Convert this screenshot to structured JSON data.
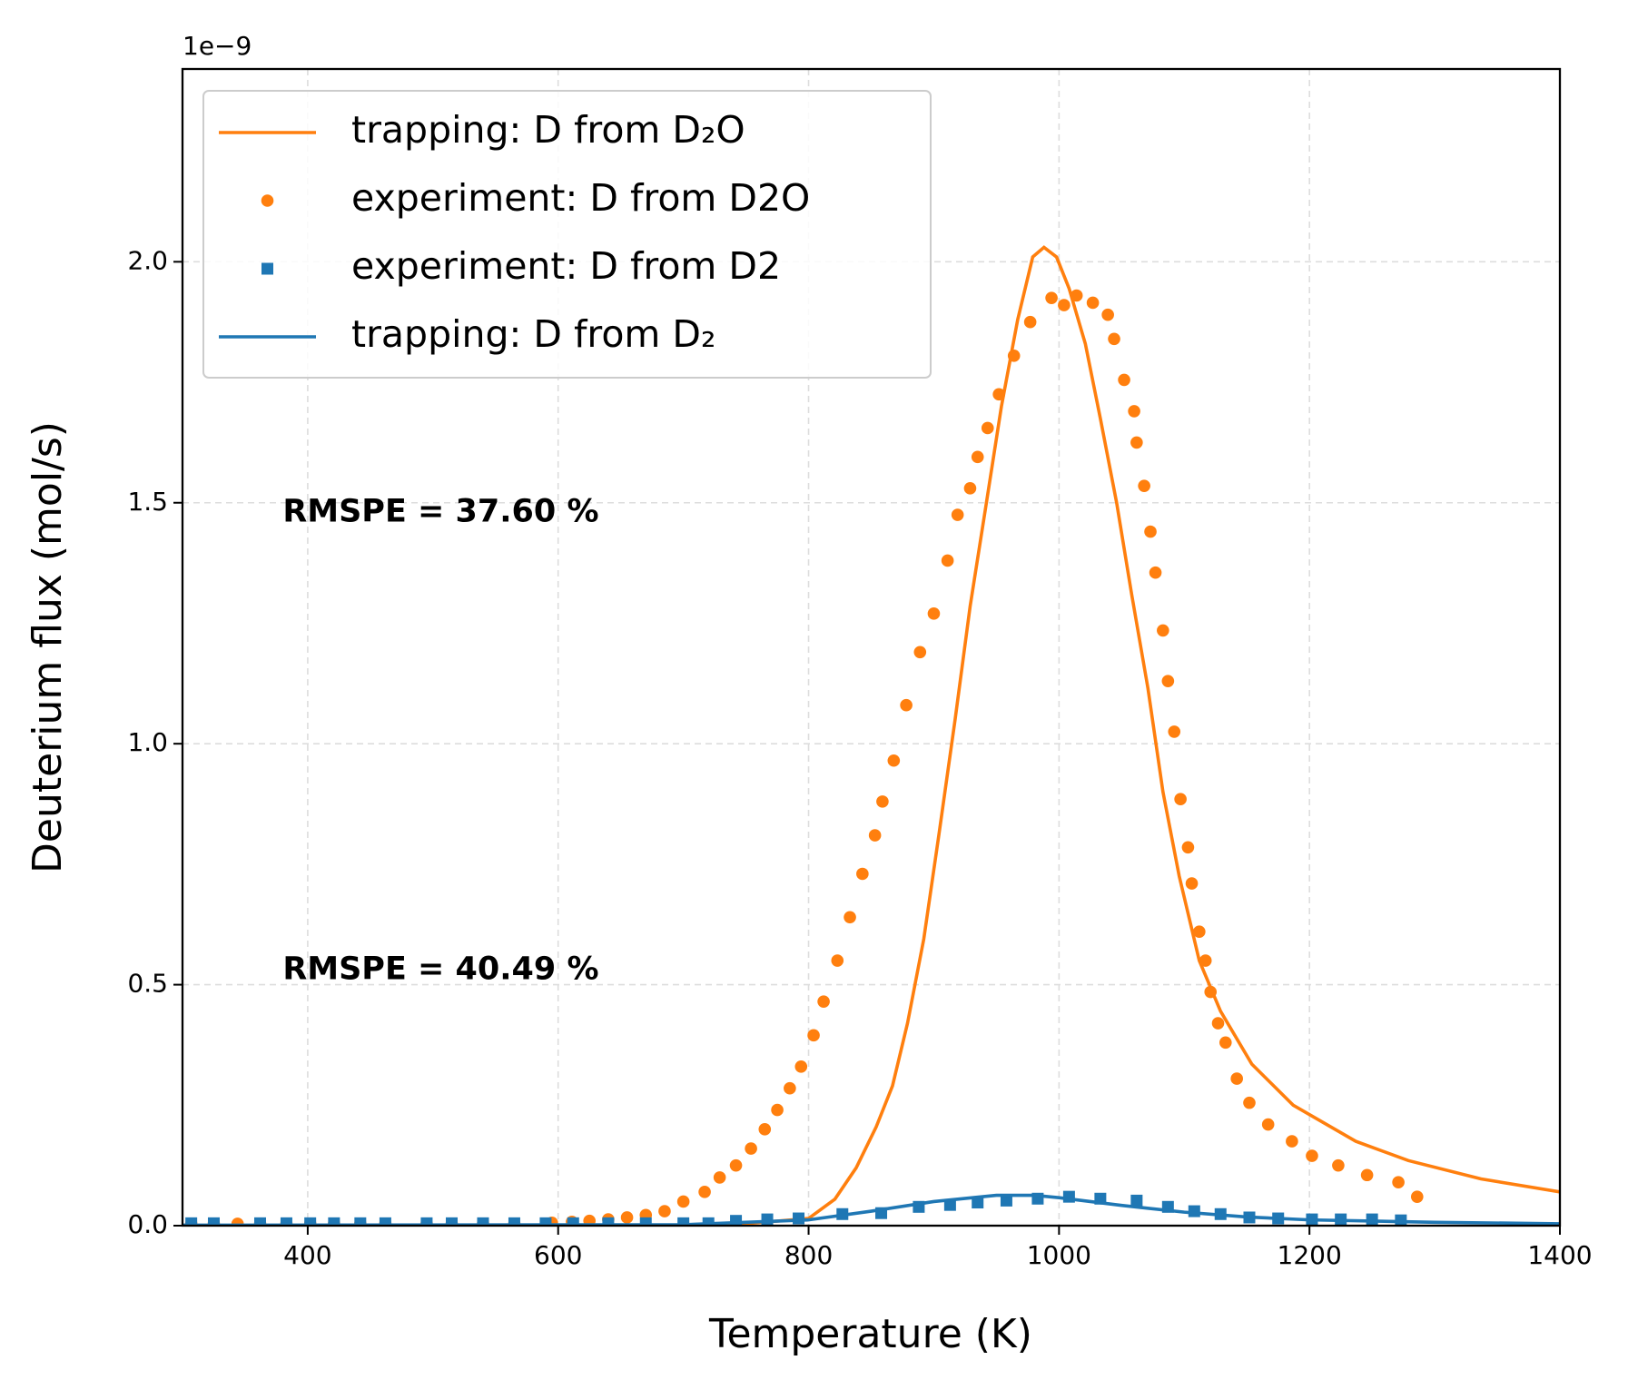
{
  "chart_data": {
    "type": "line",
    "xlabel": "Temperature (K)",
    "ylabel": "Deuterium flux (mol/s)",
    "y_offset_label": "1e−9",
    "xlim": [
      300,
      1400
    ],
    "ylim": [
      0,
      2.4
    ],
    "xticks": [
      400,
      600,
      800,
      1000,
      1200,
      1400
    ],
    "yticks": [
      {
        "value": 0,
        "label": "0.0"
      },
      {
        "value": 0.5,
        "label": "0.5"
      },
      {
        "value": 1,
        "label": "1.0"
      },
      {
        "value": 1.5,
        "label": "1.5"
      },
      {
        "value": 2,
        "label": "2.0"
      }
    ],
    "grid": true,
    "legend": "upper left",
    "annotations": [
      {
        "text": "RMSPE = 37.60 %",
        "x": 380,
        "y": 1.48,
        "color": "#ff7f0e"
      },
      {
        "text": "RMSPE = 40.49 %",
        "x": 380,
        "y": 0.53,
        "color": "#1f77b4"
      }
    ],
    "series": [
      {
        "name": "trapping: D from D₂O",
        "color": "#ff7f0e",
        "style": "line",
        "x": [
          300,
          600,
          700,
          750,
          800,
          821,
          838,
          854,
          867,
          879,
          892,
          904,
          917,
          929,
          942,
          954,
          967,
          979,
          988,
          998,
          1008,
          1021,
          1033,
          1046,
          1058,
          1071,
          1083,
          1096,
          1112,
          1129,
          1154,
          1187,
          1237,
          1279,
          1337,
          1400
        ],
        "values": [
          0,
          0,
          0.001,
          0.004,
          0.015,
          0.055,
          0.12,
          0.205,
          0.29,
          0.42,
          0.595,
          0.81,
          1.05,
          1.285,
          1.5,
          1.7,
          1.88,
          2.01,
          2.03,
          2.01,
          1.945,
          1.83,
          1.675,
          1.5,
          1.31,
          1.115,
          0.9,
          0.725,
          0.55,
          0.445,
          0.335,
          0.25,
          0.175,
          0.135,
          0.097,
          0.07
        ]
      },
      {
        "name": "experiment: D from D2O",
        "color": "#ff7f0e",
        "style": "circle",
        "x": [
          307,
          325,
          344,
          362,
          383,
          402,
          421,
          442,
          462,
          495,
          515,
          540,
          565,
          595,
          611,
          625,
          640,
          655,
          670,
          685,
          700,
          717,
          729,
          742,
          754,
          765,
          775,
          785,
          794,
          804,
          812,
          823,
          833,
          843,
          853,
          859,
          868,
          878,
          889,
          900,
          911,
          919,
          929,
          935,
          943,
          952,
          964,
          977,
          994,
          1004,
          1014,
          1027,
          1039,
          1044,
          1052,
          1060,
          1062,
          1068,
          1073,
          1077,
          1083,
          1087,
          1092,
          1097,
          1103,
          1106,
          1112,
          1117,
          1121,
          1127,
          1133,
          1142,
          1152,
          1167,
          1186,
          1202,
          1223,
          1246,
          1271,
          1286
        ],
        "values": [
          0.004,
          0.004,
          0.004,
          0.004,
          0.004,
          0.004,
          0.004,
          0.004,
          0.004,
          0.004,
          0.004,
          0.004,
          0.004,
          0.006,
          0.008,
          0.01,
          0.013,
          0.017,
          0.022,
          0.03,
          0.05,
          0.07,
          0.1,
          0.125,
          0.16,
          0.2,
          0.24,
          0.285,
          0.33,
          0.395,
          0.465,
          0.55,
          0.64,
          0.73,
          0.81,
          0.88,
          0.965,
          1.08,
          1.19,
          1.27,
          1.38,
          1.475,
          1.53,
          1.595,
          1.655,
          1.725,
          1.805,
          1.875,
          1.925,
          1.91,
          1.93,
          1.915,
          1.89,
          1.84,
          1.755,
          1.69,
          1.625,
          1.535,
          1.44,
          1.355,
          1.235,
          1.13,
          1.025,
          0.885,
          0.785,
          0.71,
          0.61,
          0.55,
          0.485,
          0.42,
          0.38,
          0.305,
          0.255,
          0.21,
          0.175,
          0.145,
          0.125,
          0.105,
          0.09,
          0.06
        ]
      },
      {
        "name": "experiment: D from D2",
        "color": "#1f77b4",
        "style": "square",
        "x": [
          307,
          325,
          362,
          383,
          402,
          421,
          442,
          462,
          495,
          515,
          540,
          565,
          590,
          612,
          640,
          670,
          700,
          720,
          742,
          767,
          792,
          827,
          858,
          888,
          913,
          935,
          958,
          983,
          1008,
          1033,
          1062,
          1087,
          1108,
          1129,
          1152,
          1175,
          1202,
          1225,
          1250,
          1273
        ],
        "values": [
          0.005,
          0.005,
          0.005,
          0.005,
          0.005,
          0.005,
          0.005,
          0.005,
          0.005,
          0.005,
          0.005,
          0.005,
          0.005,
          0.005,
          0.005,
          0.005,
          0.005,
          0.005,
          0.01,
          0.013,
          0.015,
          0.024,
          0.026,
          0.039,
          0.043,
          0.048,
          0.052,
          0.056,
          0.06,
          0.056,
          0.052,
          0.039,
          0.03,
          0.024,
          0.017,
          0.015,
          0.013,
          0.013,
          0.013,
          0.011
        ]
      },
      {
        "name": "trapping: D from D₂",
        "color": "#1f77b4",
        "style": "line",
        "x": [
          300,
          700,
          800,
          850,
          900,
          950,
          980,
          1000,
          1050,
          1100,
          1150,
          1200,
          1300,
          1400
        ],
        "values": [
          0.001,
          0.002,
          0.012,
          0.03,
          0.05,
          0.063,
          0.063,
          0.058,
          0.042,
          0.028,
          0.018,
          0.012,
          0.007,
          0.004
        ]
      }
    ]
  }
}
